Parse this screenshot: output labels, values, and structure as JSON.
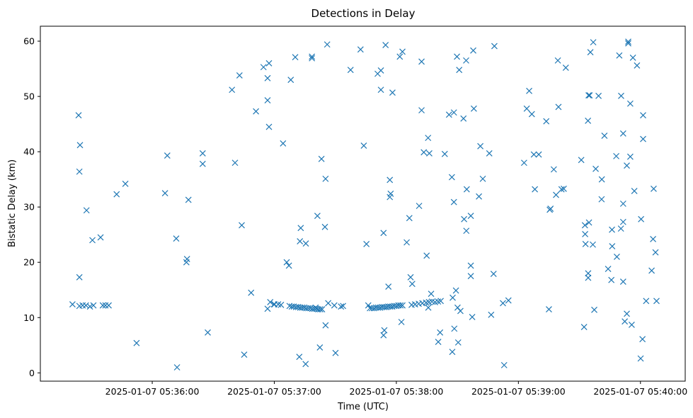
{
  "chart_data": {
    "type": "scatter",
    "title": "Detections in Delay",
    "xlabel": "Time (UTC)",
    "ylabel": "Bistatic Delay (km)",
    "marker": "x",
    "color": "#1f77b4",
    "grid": false,
    "legend": "none",
    "x_unit": "time (HH:MM:SS, UTC, 2025-01-07)",
    "xlim": [
      "05:35:05",
      "05:40:22"
    ],
    "ylim": [
      -1.5,
      62.7
    ],
    "x_ticks": [
      {
        "value": "05:36:00",
        "label": "2025-01-07 05:36:00"
      },
      {
        "value": "05:37:00",
        "label": "2025-01-07 05:37:00"
      },
      {
        "value": "05:38:00",
        "label": "2025-01-07 05:38:00"
      },
      {
        "value": "05:39:00",
        "label": "2025-01-07 05:39:00"
      },
      {
        "value": "05:40:00",
        "label": "2025-01-07 05:40:00"
      }
    ],
    "y_ticks": [
      0,
      10,
      20,
      30,
      40,
      50,
      60
    ],
    "points": [
      [
        "05:35:20.8",
        12.4
      ],
      [
        "05:35:24.2",
        12.1
      ],
      [
        "05:35:25.8",
        12.2
      ],
      [
        "05:35:27.4",
        12.2
      ],
      [
        "05:35:29.4",
        12.0
      ],
      [
        "05:35:31.1",
        12.2
      ],
      [
        "05:35:35.7",
        12.2
      ],
      [
        "05:35:37.0",
        12.2
      ],
      [
        "05:35:38.6",
        12.2
      ],
      [
        "05:35:23.8",
        46.6
      ],
      [
        "05:35:24.5",
        41.2
      ],
      [
        "05:35:24.2",
        36.4
      ],
      [
        "05:35:24.2",
        17.3
      ],
      [
        "05:35:27.7",
        29.4
      ],
      [
        "05:35:30.6",
        24.0
      ],
      [
        "05:35:34.6",
        24.5
      ],
      [
        "05:35:42.5",
        32.3
      ],
      [
        "05:35:46.8",
        34.2
      ],
      [
        "05:35:52.3",
        5.4
      ],
      [
        "05:36:06.3",
        32.5
      ],
      [
        "05:36:07.4",
        39.3
      ],
      [
        "05:36:11.8",
        24.3
      ],
      [
        "05:36:12.2",
        1.0
      ],
      [
        "05:36:16.8",
        20.0
      ],
      [
        "05:36:17.1",
        20.6
      ],
      [
        "05:36:17.8",
        31.3
      ],
      [
        "05:36:24.8",
        39.7
      ],
      [
        "05:36:24.8",
        37.8
      ],
      [
        "05:36:27.3",
        7.3
      ],
      [
        "05:36:39.2",
        51.2
      ],
      [
        "05:36:40.7",
        38.0
      ],
      [
        "05:36:42.9",
        53.8
      ],
      [
        "05:36:44.0",
        26.7
      ],
      [
        "05:36:45.2",
        3.3
      ],
      [
        "05:36:48.6",
        14.5
      ],
      [
        "05:36:51.0",
        47.3
      ],
      [
        "05:36:54.7",
        55.3
      ],
      [
        "05:36:56.7",
        53.3
      ],
      [
        "05:36:56.7",
        49.3
      ],
      [
        "05:36:57.4",
        56.0
      ],
      [
        "05:36:57.4",
        44.5
      ],
      [
        "05:36:56.7",
        11.6
      ],
      [
        "05:36:58.0",
        12.8
      ],
      [
        "05:37:00.1",
        12.4
      ],
      [
        "05:37:01.9",
        12.4
      ],
      [
        "05:37:03.3",
        12.3
      ],
      [
        "05:36:59.8",
        12.4
      ],
      [
        "05:37:04.3",
        41.5
      ],
      [
        "05:37:06.1",
        20.0
      ],
      [
        "05:37:07.2",
        19.4
      ],
      [
        "05:37:08.1",
        53.0
      ],
      [
        "05:37:07.5",
        12.1
      ],
      [
        "05:37:08.6",
        12.0
      ],
      [
        "05:37:09.6",
        12.0
      ],
      [
        "05:37:10.7",
        11.9
      ],
      [
        "05:37:11.7",
        11.9
      ],
      [
        "05:37:12.7",
        11.8
      ],
      [
        "05:37:13.7",
        11.8
      ],
      [
        "05:37:14.7",
        11.8
      ],
      [
        "05:37:15.7",
        11.7
      ],
      [
        "05:37:16.7",
        11.7
      ],
      [
        "05:37:17.7",
        11.7
      ],
      [
        "05:37:18.7",
        11.6
      ],
      [
        "05:37:19.7",
        11.6
      ],
      [
        "05:37:20.7",
        11.6
      ],
      [
        "05:37:21.6",
        11.5
      ],
      [
        "05:37:22.6",
        11.5
      ],
      [
        "05:37:23.5",
        11.5
      ],
      [
        "05:37:10.3",
        57.1
      ],
      [
        "05:37:12.3",
        2.9
      ],
      [
        "05:37:13.0",
        26.2
      ],
      [
        "05:37:12.6",
        23.8
      ],
      [
        "05:37:15.5",
        23.4
      ],
      [
        "05:37:15.4",
        1.6
      ],
      [
        "05:37:18.5",
        57.2
      ],
      [
        "05:37:18.5",
        56.9
      ],
      [
        "05:37:21.2",
        28.4
      ],
      [
        "05:37:22.4",
        4.6
      ],
      [
        "05:37:23.2",
        38.7
      ],
      [
        "05:37:24.9",
        26.4
      ],
      [
        "05:37:25.2",
        35.1
      ],
      [
        "05:37:25.2",
        8.6
      ],
      [
        "05:37:26.0",
        59.4
      ],
      [
        "05:37:26.5",
        12.6
      ],
      [
        "05:37:20.3",
        11.8
      ],
      [
        "05:37:29.5",
        12.2
      ],
      [
        "05:37:32.8",
        12.0
      ],
      [
        "05:37:33.8",
        12.1
      ],
      [
        "05:37:30.1",
        3.6
      ],
      [
        "05:37:37.5",
        54.8
      ],
      [
        "05:37:42.4",
        58.5
      ],
      [
        "05:37:44.0",
        41.1
      ],
      [
        "05:37:45.3",
        23.3
      ],
      [
        "05:37:46.2",
        12.2
      ],
      [
        "05:37:47.0",
        11.7
      ],
      [
        "05:37:48.0",
        11.7
      ],
      [
        "05:37:49.0",
        11.7
      ],
      [
        "05:37:50.0",
        11.8
      ],
      [
        "05:37:51.0",
        11.8
      ],
      [
        "05:37:52.0",
        11.8
      ],
      [
        "05:37:53.0",
        11.9
      ],
      [
        "05:37:54.0",
        11.9
      ],
      [
        "05:37:55.0",
        11.9
      ],
      [
        "05:37:56.0",
        12.0
      ],
      [
        "05:37:57.0",
        12.0
      ],
      [
        "05:37:58.0",
        12.0
      ],
      [
        "05:37:59.0",
        12.1
      ],
      [
        "05:38:00.0",
        12.1
      ],
      [
        "05:38:01.0",
        12.2
      ],
      [
        "05:38:02.0",
        12.2
      ],
      [
        "05:38:03.0",
        12.2
      ],
      [
        "05:37:50.8",
        54.1
      ],
      [
        "05:37:52.4",
        54.7
      ],
      [
        "05:37:52.4",
        51.2
      ],
      [
        "05:37:53.7",
        25.3
      ],
      [
        "05:37:53.7",
        6.8
      ],
      [
        "05:37:54.1",
        7.7
      ],
      [
        "05:37:54.7",
        59.3
      ],
      [
        "05:37:56.1",
        15.6
      ],
      [
        "05:37:56.8",
        34.9
      ],
      [
        "05:37:56.8",
        31.8
      ],
      [
        "05:37:57.2",
        32.4
      ],
      [
        "05:37:58.1",
        50.7
      ],
      [
        "05:38:01.7",
        57.2
      ],
      [
        "05:38:02.5",
        9.2
      ],
      [
        "05:38:03.0",
        58.1
      ],
      [
        "05:38:05.1",
        23.6
      ],
      [
        "05:38:06.4",
        28.0
      ],
      [
        "05:38:07.0",
        17.3
      ],
      [
        "05:38:07.8",
        16.1
      ],
      [
        "05:38:07.5",
        12.3
      ],
      [
        "05:38:09.2",
        12.4
      ],
      [
        "05:38:11.0",
        12.5
      ],
      [
        "05:38:12.8",
        12.6
      ],
      [
        "05:38:14.6",
        12.7
      ],
      [
        "05:38:16.0",
        12.8
      ],
      [
        "05:38:17.5",
        12.9
      ],
      [
        "05:38:19.0",
        12.8
      ],
      [
        "05:38:20.5",
        12.9
      ],
      [
        "05:38:21.8",
        13.0
      ],
      [
        "05:38:11.2",
        30.2
      ],
      [
        "05:38:12.4",
        56.3
      ],
      [
        "05:38:12.4",
        47.5
      ],
      [
        "05:38:13.5",
        39.9
      ],
      [
        "05:38:14.9",
        21.2
      ],
      [
        "05:38:15.6",
        42.5
      ],
      [
        "05:38:16.2",
        39.7
      ],
      [
        "05:38:17.1",
        14.3
      ],
      [
        "05:38:15.7",
        11.8
      ],
      [
        "05:38:20.6",
        5.6
      ],
      [
        "05:38:21.5",
        7.3
      ],
      [
        "05:38:23.8",
        39.6
      ],
      [
        "05:38:25.9",
        46.7
      ],
      [
        "05:38:27.3",
        35.4
      ],
      [
        "05:38:28.3",
        47.1
      ],
      [
        "05:38:28.3",
        30.9
      ],
      [
        "05:38:27.7",
        13.6
      ],
      [
        "05:38:27.5",
        3.8
      ],
      [
        "05:38:28.5",
        8.0
      ],
      [
        "05:38:29.3",
        14.9
      ],
      [
        "05:38:29.8",
        57.2
      ],
      [
        "05:38:30.1",
        11.8
      ],
      [
        "05:38:30.4",
        5.5
      ],
      [
        "05:38:30.9",
        54.8
      ],
      [
        "05:38:31.5",
        11.2
      ],
      [
        "05:38:33.0",
        46.0
      ],
      [
        "05:38:33.3",
        27.8
      ],
      [
        "05:38:34.3",
        56.5
      ],
      [
        "05:38:34.4",
        25.7
      ],
      [
        "05:38:34.6",
        33.2
      ],
      [
        "05:38:36.6",
        28.4
      ],
      [
        "05:38:36.6",
        19.4
      ],
      [
        "05:38:36.6",
        17.5
      ],
      [
        "05:38:37.3",
        10.1
      ],
      [
        "05:38:37.8",
        58.3
      ],
      [
        "05:38:38.1",
        47.8
      ],
      [
        "05:38:40.6",
        31.9
      ],
      [
        "05:38:41.3",
        41.0
      ],
      [
        "05:38:42.5",
        35.1
      ],
      [
        "05:38:45.7",
        39.7
      ],
      [
        "05:38:46.6",
        10.5
      ],
      [
        "05:38:47.8",
        17.9
      ],
      [
        "05:38:48.2",
        59.1
      ],
      [
        "05:38:52.4",
        12.6
      ],
      [
        "05:38:53.0",
        1.4
      ],
      [
        "05:38:55.1",
        13.1
      ],
      [
        "05:39:02.8",
        38.0
      ],
      [
        "05:39:04.1",
        47.8
      ],
      [
        "05:39:05.3",
        51.0
      ],
      [
        "05:39:06.6",
        46.8
      ],
      [
        "05:39:07.6",
        39.5
      ],
      [
        "05:39:08.1",
        33.2
      ],
      [
        "05:39:10.0",
        39.5
      ],
      [
        "05:39:13.7",
        45.5
      ],
      [
        "05:39:15.4",
        29.5
      ],
      [
        "05:39:15.0",
        11.5
      ],
      [
        "05:39:15.8",
        29.7
      ],
      [
        "05:39:17.4",
        36.8
      ],
      [
        "05:39:18.5",
        32.2
      ],
      [
        "05:39:19.4",
        56.5
      ],
      [
        "05:39:19.7",
        48.1
      ],
      [
        "05:39:21.2",
        33.2
      ],
      [
        "05:39:22.3",
        33.3
      ],
      [
        "05:39:23.3",
        55.2
      ],
      [
        "05:39:30.9",
        38.5
      ],
      [
        "05:39:32.3",
        8.3
      ],
      [
        "05:39:32.7",
        26.7
      ],
      [
        "05:39:32.8",
        25.1
      ],
      [
        "05:39:33.0",
        23.3
      ],
      [
        "05:39:34.2",
        45.6
      ],
      [
        "05:39:34.5",
        50.2
      ],
      [
        "05:39:34.3",
        18.0
      ],
      [
        "05:39:34.3",
        17.2
      ],
      [
        "05:39:35.0",
        50.2
      ],
      [
        "05:39:35.4",
        58.0
      ],
      [
        "05:39:34.7",
        27.2
      ],
      [
        "05:39:36.8",
        59.8
      ],
      [
        "05:39:36.6",
        23.2
      ],
      [
        "05:39:37.3",
        11.4
      ],
      [
        "05:39:38.0",
        36.9
      ],
      [
        "05:39:39.4",
        50.1
      ],
      [
        "05:39:41.0",
        35.0
      ],
      [
        "05:39:40.9",
        31.4
      ],
      [
        "05:39:42.3",
        42.9
      ],
      [
        "05:39:44.1",
        18.8
      ],
      [
        "05:39:45.7",
        16.8
      ],
      [
        "05:39:46.0",
        25.9
      ],
      [
        "05:39:46.1",
        22.9
      ],
      [
        "05:39:48.1",
        39.2
      ],
      [
        "05:39:48.4",
        21.0
      ],
      [
        "05:39:49.6",
        57.4
      ],
      [
        "05:39:50.5",
        50.1
      ],
      [
        "05:39:50.4",
        26.1
      ],
      [
        "05:39:51.5",
        43.3
      ],
      [
        "05:39:51.5",
        30.6
      ],
      [
        "05:39:51.5",
        27.3
      ],
      [
        "05:39:51.5",
        16.5
      ],
      [
        "05:39:52.3",
        9.3
      ],
      [
        "05:39:53.3",
        37.5
      ],
      [
        "05:39:53.3",
        10.7
      ],
      [
        "05:39:54.0",
        59.9
      ],
      [
        "05:39:54.0",
        59.6
      ],
      [
        "05:39:55.0",
        39.1
      ],
      [
        "05:39:55.0",
        48.7
      ],
      [
        "05:39:55.7",
        8.7
      ],
      [
        "05:39:56.3",
        57.0
      ],
      [
        "05:39:57.0",
        32.9
      ],
      [
        "05:39:58.3",
        55.6
      ],
      [
        "05:40:00.1",
        2.6
      ],
      [
        "05:40:00.3",
        27.8
      ],
      [
        "05:40:01.3",
        42.3
      ],
      [
        "05:40:01.0",
        6.1
      ],
      [
        "05:40:01.3",
        46.6
      ],
      [
        "05:40:02.8",
        13.0
      ],
      [
        "05:40:05.5",
        18.5
      ],
      [
        "05:40:06.2",
        24.2
      ],
      [
        "05:40:06.5",
        33.3
      ],
      [
        "05:40:07.4",
        21.8
      ],
      [
        "05:40:07.9",
        13.0
      ]
    ]
  }
}
